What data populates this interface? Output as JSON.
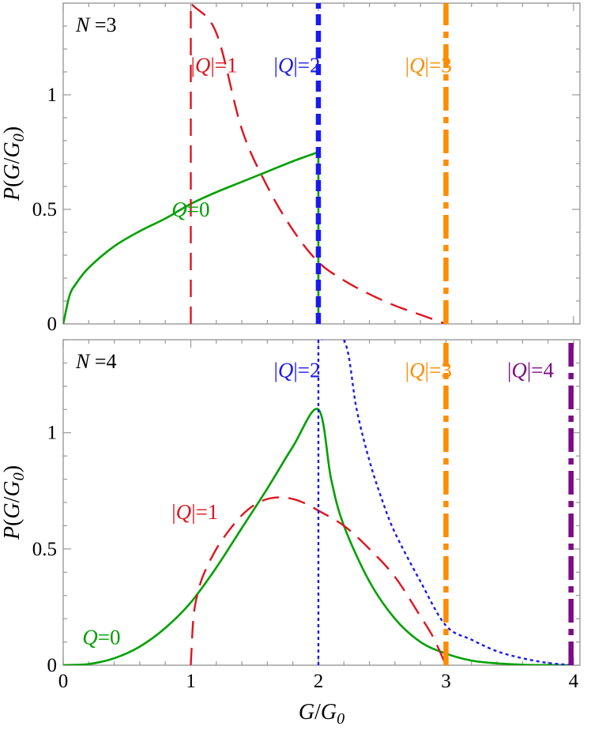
{
  "chart_data": [
    {
      "type": "line",
      "panel_label": "N =3",
      "xlabel": "",
      "ylabel": "P(G/G0)",
      "xlim": [
        0,
        4.05
      ],
      "ylim": [
        0,
        1.4
      ],
      "x_ticks": [
        0,
        1,
        2,
        3,
        4
      ],
      "y_ticks": [
        {
          "value": 0,
          "label": "0"
        },
        {
          "value": 0.5,
          "label": "0.5"
        },
        {
          "value": 1,
          "label": "1"
        }
      ],
      "x_tick_labels_visible": false,
      "grid": false,
      "series": [
        {
          "name": "Q=0",
          "color": "#00a000",
          "style": "solid",
          "x": [
            0,
            0.05,
            0.1,
            0.2,
            0.4,
            0.6,
            0.8,
            1.0,
            1.2,
            1.4,
            1.6,
            1.8,
            2.0,
            2.0
          ],
          "y": [
            0,
            0.124,
            0.175,
            0.245,
            0.339,
            0.405,
            0.46,
            0.524,
            0.575,
            0.62,
            0.665,
            0.71,
            0.75,
            0
          ],
          "label_x": 0.85,
          "label_y": 0.5
        },
        {
          "name": "|Q|=1",
          "color": "#e0141e",
          "style": "dashed",
          "x": [
            1.0,
            1.0,
            1.2,
            1.4,
            1.6,
            1.8,
            2.0,
            2.2,
            2.4,
            2.6,
            2.8,
            3.0
          ],
          "y": [
            0,
            1.4,
            1.27,
            0.85,
            0.6,
            0.41,
            0.27,
            0.19,
            0.13,
            0.08,
            0.04,
            0
          ],
          "label_x": 1.0,
          "label_y": 1.13
        },
        {
          "name": "|Q|=2",
          "color": "#1a1aee",
          "style": "thick-dashed",
          "x": [
            2.0,
            2.0
          ],
          "y": [
            0,
            1.4
          ],
          "label_x": 1.65,
          "label_y": 1.13
        },
        {
          "name": "|Q|=3",
          "color": "#ff8c00",
          "style": "dash-dot",
          "x": [
            3.0,
            3.0
          ],
          "y": [
            0,
            1.4
          ],
          "label_x": 2.68,
          "label_y": 1.13
        }
      ]
    },
    {
      "type": "line",
      "panel_label": "N =4",
      "xlabel": "G/G0",
      "ylabel": "P(G/G0)",
      "xlim": [
        0,
        4.05
      ],
      "ylim": [
        0,
        1.4
      ],
      "x_ticks": [
        {
          "value": 0,
          "label": "0"
        },
        {
          "value": 1,
          "label": "1"
        },
        {
          "value": 2,
          "label": "2"
        },
        {
          "value": 3,
          "label": "3"
        },
        {
          "value": 4,
          "label": "4"
        }
      ],
      "y_ticks": [
        {
          "value": 0,
          "label": "0"
        },
        {
          "value": 0.5,
          "label": "0.5"
        },
        {
          "value": 1,
          "label": "1"
        }
      ],
      "x_tick_labels_visible": true,
      "grid": false,
      "series": [
        {
          "name": "Q=0",
          "color": "#00a000",
          "style": "solid",
          "x": [
            0,
            0.2,
            0.4,
            0.6,
            0.8,
            1.0,
            1.2,
            1.4,
            1.6,
            1.8,
            2.0,
            2.1,
            2.2,
            2.4,
            2.6,
            2.8,
            3.0,
            3.2,
            3.4,
            3.6,
            3.8,
            4.0
          ],
          "y": [
            0,
            0.005,
            0.03,
            0.08,
            0.16,
            0.27,
            0.42,
            0.59,
            0.76,
            0.94,
            1.1,
            0.8,
            0.6,
            0.36,
            0.2,
            0.1,
            0.05,
            0.02,
            0.008,
            0.002,
            0.0005,
            0
          ],
          "label_x": 0.15,
          "label_y": 0.12
        },
        {
          "name": "|Q|=1",
          "color": "#e0141e",
          "style": "dashed",
          "x": [
            1.0,
            1.02,
            1.05,
            1.1,
            1.2,
            1.3,
            1.4,
            1.5,
            1.6,
            1.7,
            1.8,
            1.9,
            2.0,
            2.2,
            2.4,
            2.6,
            2.8,
            2.9,
            3.0
          ],
          "y": [
            0,
            0.2,
            0.3,
            0.39,
            0.5,
            0.58,
            0.645,
            0.69,
            0.715,
            0.722,
            0.715,
            0.695,
            0.665,
            0.6,
            0.5,
            0.38,
            0.21,
            0.12,
            0
          ],
          "label_x": 0.85,
          "label_y": 0.66
        },
        {
          "name": "|Q|=2",
          "color": "#1a1aee",
          "style": "dotted",
          "x": [
            2.0,
            2.0,
            2.2,
            2.3,
            2.4,
            2.5,
            2.6,
            2.8,
            3.0,
            3.2,
            3.4,
            3.6,
            3.8,
            4.0
          ],
          "y": [
            0,
            1.4,
            1.4,
            1.1,
            0.88,
            0.71,
            0.57,
            0.36,
            0.17,
            0.11,
            0.06,
            0.03,
            0.01,
            0
          ],
          "label_x": 1.65,
          "label_y": 1.27
        },
        {
          "name": "|Q|=3",
          "color": "#ff8c00",
          "style": "dash-dot",
          "x": [
            3.0,
            3.0
          ],
          "y": [
            0,
            1.4
          ],
          "label_x": 2.68,
          "label_y": 1.27
        },
        {
          "name": "|Q|=4",
          "color": "#7d0d87",
          "style": "dash-dot",
          "x": [
            3.98,
            3.98
          ],
          "y": [
            0,
            1.4
          ],
          "label_x": 3.48,
          "label_y": 1.27
        }
      ]
    }
  ]
}
